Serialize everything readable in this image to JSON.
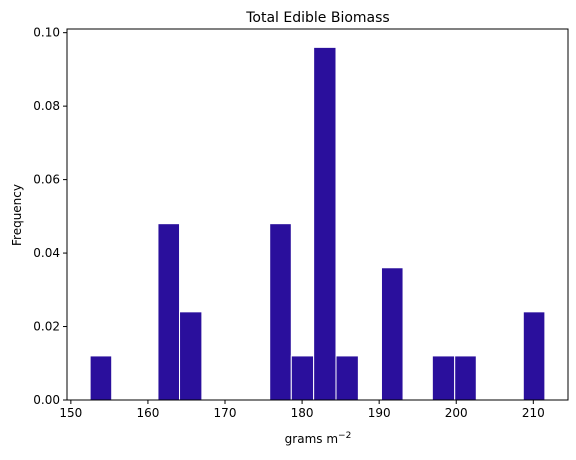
{
  "chart_data": {
    "type": "bar",
    "title": "Total Edible Biomass",
    "xlabel": "grams m",
    "xlabel_superscript": "−2",
    "ylabel": "Frequency",
    "xlim": [
      149.5,
      214.5
    ],
    "ylim": [
      0,
      0.101
    ],
    "x_ticks": [
      150,
      160,
      170,
      180,
      190,
      200,
      210
    ],
    "y_ticks": [
      0.0,
      0.02,
      0.04,
      0.06,
      0.08,
      0.1
    ],
    "bins": [
      {
        "x0": 152.5,
        "x1": 155.3,
        "value": 0.012
      },
      {
        "x0": 161.3,
        "x1": 164.1,
        "value": 0.048
      },
      {
        "x0": 164.1,
        "x1": 167.0,
        "value": 0.024
      },
      {
        "x0": 175.8,
        "x1": 178.6,
        "value": 0.048
      },
      {
        "x0": 178.6,
        "x1": 181.5,
        "value": 0.012
      },
      {
        "x0": 181.5,
        "x1": 184.4,
        "value": 0.096
      },
      {
        "x0": 184.4,
        "x1": 187.3,
        "value": 0.012
      },
      {
        "x0": 190.3,
        "x1": 193.1,
        "value": 0.036
      },
      {
        "x0": 196.9,
        "x1": 199.8,
        "value": 0.012
      },
      {
        "x0": 199.8,
        "x1": 202.6,
        "value": 0.012
      },
      {
        "x0": 208.7,
        "x1": 211.5,
        "value": 0.024
      }
    ],
    "bar_color": "#2a0f9c",
    "edge_color": "#ffffff",
    "grid": false,
    "legend": "none"
  }
}
